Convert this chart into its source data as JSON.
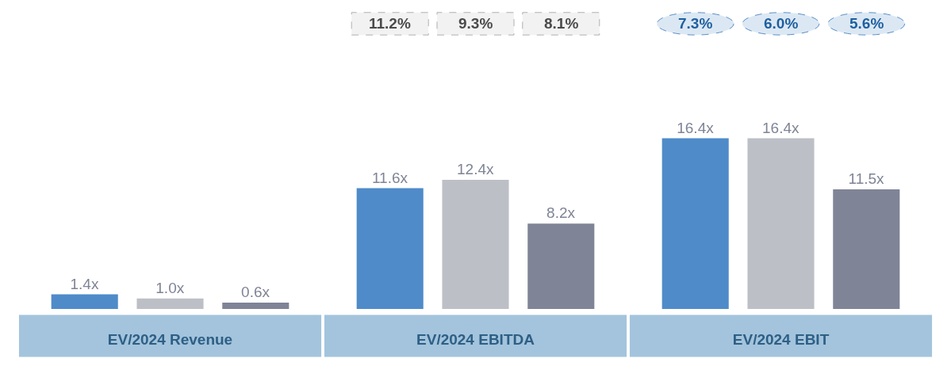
{
  "chart_data": {
    "type": "bar",
    "categories": [
      "EV/2024 Revenue",
      "EV/2024 EBITDA",
      "EV/2024 EBIT"
    ],
    "series": [
      {
        "color": "#4f8bc9",
        "values": [
          1.4,
          11.6,
          16.4
        ],
        "value_labels": [
          "1.4x",
          "11.6x",
          "16.4x"
        ]
      },
      {
        "color": "#bdbfc6",
        "values": [
          1.0,
          12.4,
          16.4
        ],
        "value_labels": [
          "1.0x",
          "12.4x",
          "16.4x"
        ]
      },
      {
        "color": "#7f8496",
        "values": [
          0.6,
          8.2,
          11.5
        ],
        "value_labels": [
          "0.6x",
          "8.2x",
          "11.5x"
        ]
      }
    ],
    "annotations": [
      "11.2%",
      "9.3%",
      "8.1%",
      "7.3%",
      "6.0%",
      "5.6%"
    ],
    "legend": false
  }
}
